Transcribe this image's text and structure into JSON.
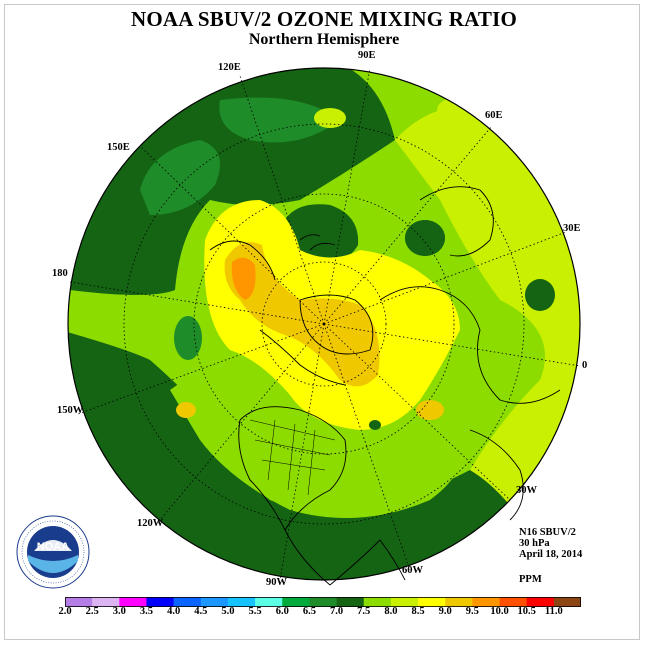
{
  "header": {
    "title": "NOAA SBUV/2 OZONE MIXING RATIO",
    "subtitle": "Northern Hemisphere"
  },
  "longitude_labels": {
    "e90": "90E",
    "e120": "120E",
    "e60": "60E",
    "e150": "150E",
    "e30": "30E",
    "w180": "180",
    "e0": "0",
    "w150": "150W",
    "w30": "30W",
    "w120": "120W",
    "w60": "60W",
    "w90": "90W"
  },
  "info": {
    "instrument": "N16 SBUV/2",
    "level": "30 hPa",
    "date": "April 18, 2014",
    "units": "PPM"
  },
  "colorbar": {
    "ticks": [
      "2.0",
      "2.5",
      "3.0",
      "3.5",
      "4.0",
      "4.5",
      "5.0",
      "5.5",
      "6.0",
      "6.5",
      "7.0",
      "7.5",
      "8.0",
      "8.5",
      "9.0",
      "9.5",
      "10.0",
      "10.5",
      "11.0"
    ],
    "colors": [
      "#b57ee6",
      "#dcb4f2",
      "#ff00ff",
      "#0000ff",
      "#0a64ff",
      "#1e96ff",
      "#14c3ff",
      "#5affe6",
      "#00aa3c",
      "#1e8c28",
      "#146414",
      "#8cdc00",
      "#c8f000",
      "#ffff00",
      "#f0c800",
      "#ff9600",
      "#ff5000",
      "#ff0000",
      "#8c4614"
    ]
  },
  "logo": {
    "text": "NOAA",
    "ring_text": "NATIONAL OCEANIC AND ATMOSPHERIC ADMINISTRATION · U.S. DEPARTMENT OF COMMERCE"
  }
}
